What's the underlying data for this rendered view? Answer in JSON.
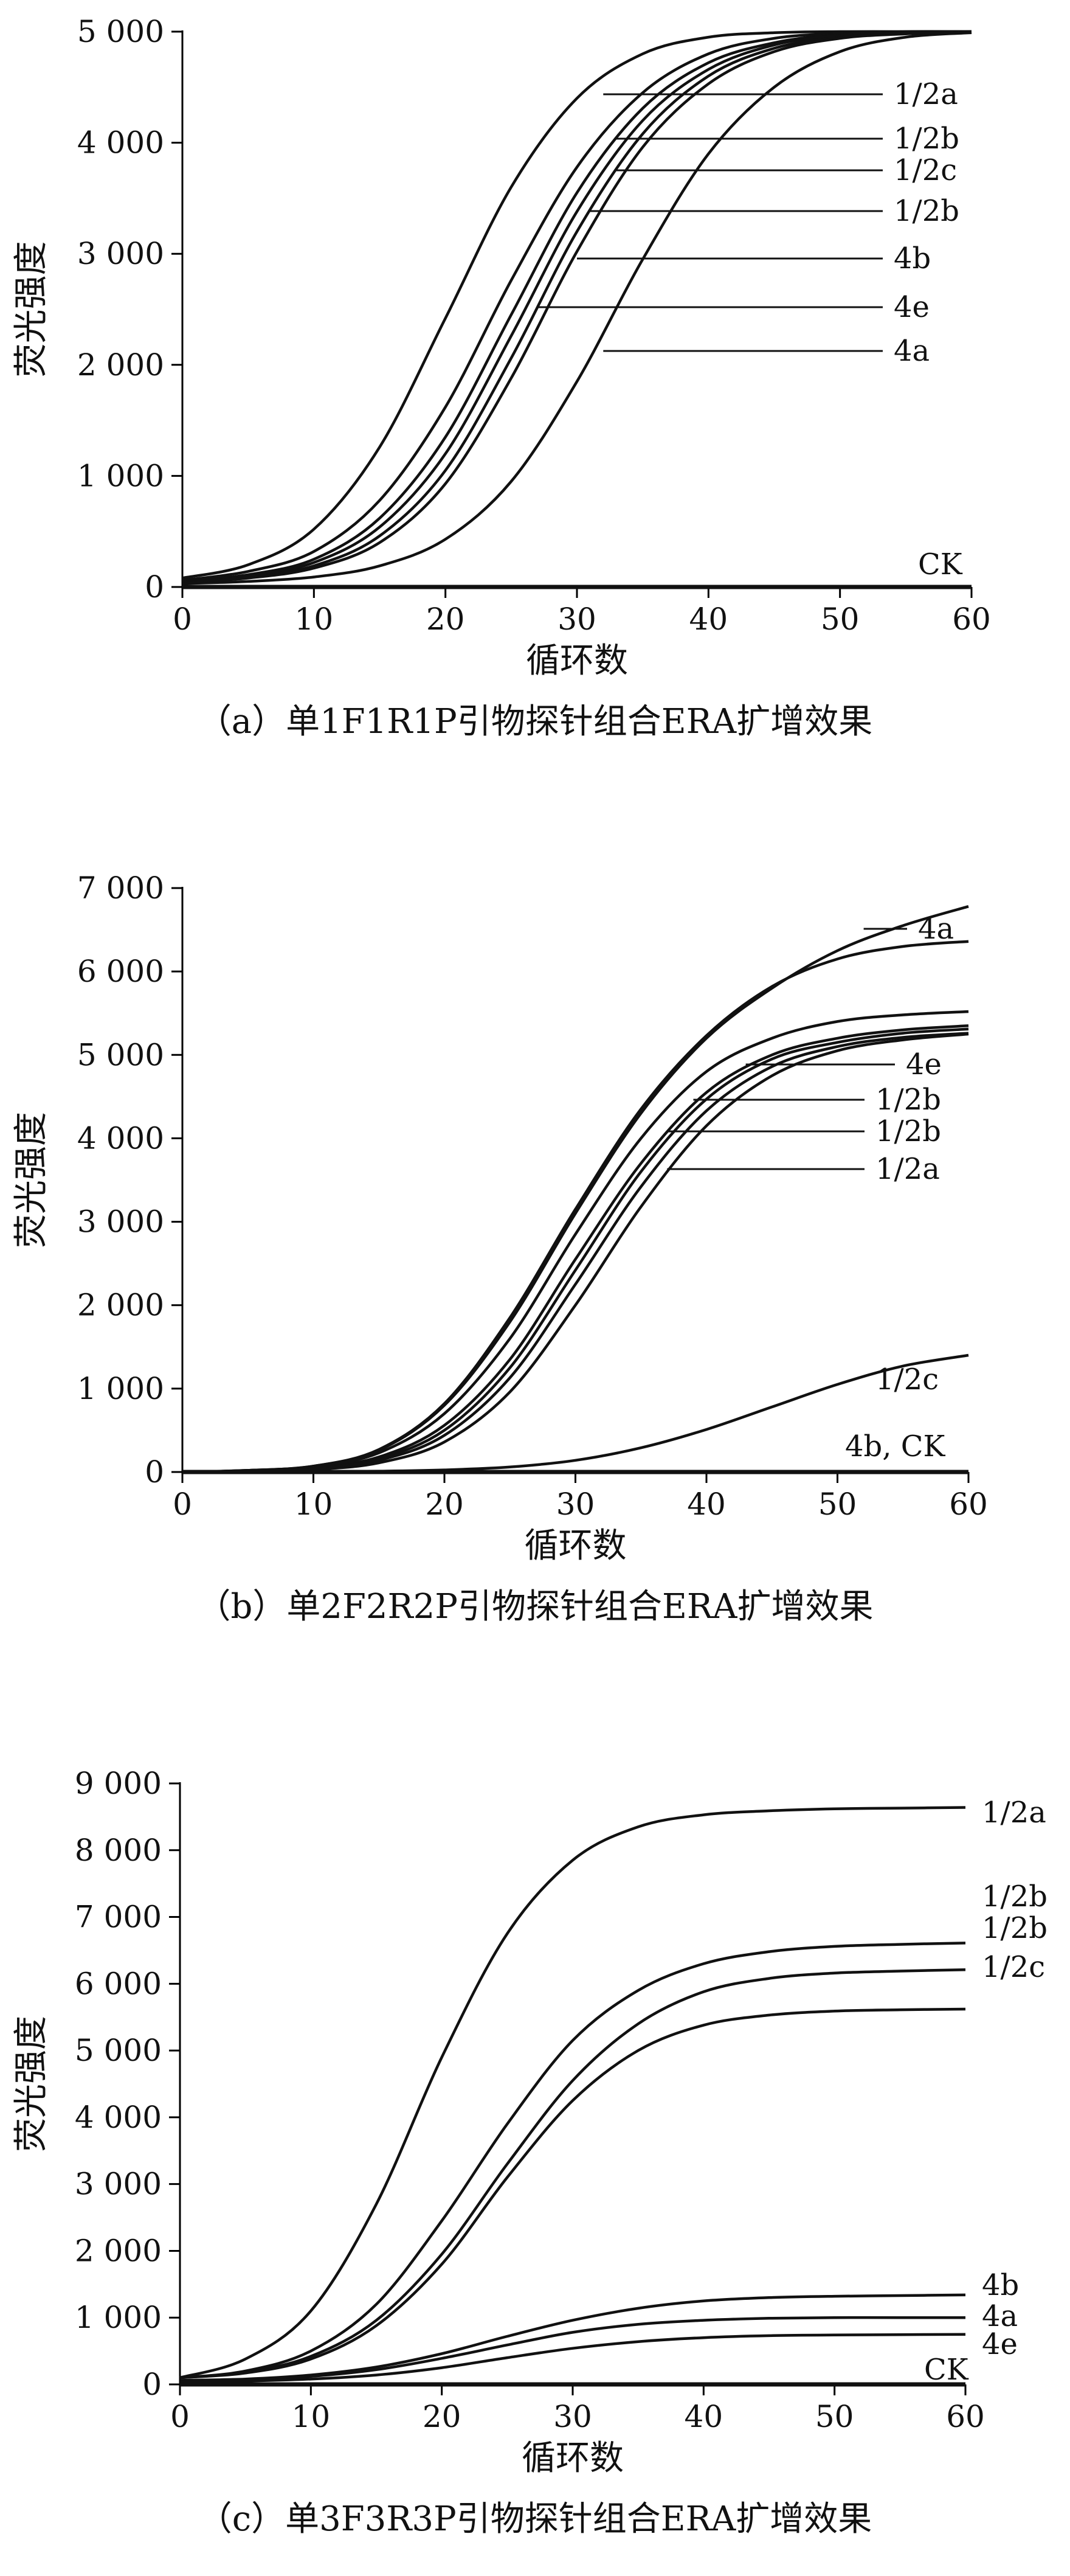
{
  "chart_data": [
    {
      "type": "line",
      "caption": "（a）单1F1R1P引物探针组合ERA扩增效果",
      "xlabel": "循环数",
      "ylabel": "荧光强度",
      "xlim": [
        0,
        60
      ],
      "ylim": [
        0,
        5000
      ],
      "xticks": [
        "0",
        "10",
        "20",
        "30",
        "40",
        "50",
        "60"
      ],
      "yticks": [
        "0",
        "1 000",
        "2 000",
        "3 000",
        "4 000",
        "5 000"
      ],
      "grid": false,
      "series": [
        {
          "name": "1/2a",
          "x": [
            0,
            5,
            10,
            15,
            20,
            25,
            30,
            35,
            40,
            45,
            50,
            55,
            60
          ],
          "y": [
            80,
            200,
            520,
            1260,
            2420,
            3600,
            4400,
            4800,
            4950,
            4990,
            5000,
            5000,
            5000
          ]
        },
        {
          "name": "1/2b",
          "x": [
            0,
            5,
            10,
            15,
            20,
            25,
            30,
            35,
            40,
            45,
            50,
            55,
            60
          ],
          "y": [
            60,
            140,
            320,
            780,
            1620,
            2760,
            3780,
            4450,
            4800,
            4940,
            4985,
            5000,
            5000
          ]
        },
        {
          "name": "1/2c",
          "x": [
            0,
            5,
            10,
            15,
            20,
            25,
            30,
            35,
            40,
            45,
            50,
            55,
            60
          ],
          "y": [
            50,
            110,
            250,
            620,
            1350,
            2450,
            3550,
            4310,
            4720,
            4900,
            4975,
            4995,
            5000
          ]
        },
        {
          "name": "1/2b",
          "x": [
            0,
            5,
            10,
            15,
            20,
            25,
            30,
            35,
            40,
            45,
            50,
            55,
            60
          ],
          "y": [
            50,
            100,
            220,
            540,
            1200,
            2260,
            3380,
            4200,
            4660,
            4880,
            4965,
            4990,
            5000
          ]
        },
        {
          "name": "4b",
          "x": [
            0,
            5,
            10,
            15,
            20,
            25,
            30,
            35,
            40,
            45,
            50,
            55,
            60
          ],
          "y": [
            40,
            90,
            190,
            460,
            1050,
            2060,
            3200,
            4080,
            4600,
            4850,
            4950,
            4985,
            5000
          ]
        },
        {
          "name": "4e",
          "x": [
            0,
            5,
            10,
            15,
            20,
            25,
            30,
            35,
            40,
            45,
            50,
            55,
            60
          ],
          "y": [
            40,
            80,
            170,
            400,
            930,
            1880,
            3020,
            3960,
            4530,
            4820,
            4940,
            4980,
            4995
          ]
        },
        {
          "name": "4a",
          "x": [
            0,
            5,
            10,
            15,
            20,
            25,
            30,
            35,
            40,
            45,
            50,
            55,
            60
          ],
          "y": [
            30,
            50,
            90,
            190,
            430,
            950,
            1850,
            2950,
            3900,
            4500,
            4820,
            4950,
            4990
          ]
        },
        {
          "name": "CK",
          "x": [
            0,
            60
          ],
          "y": [
            0,
            0
          ]
        }
      ]
    },
    {
      "type": "line",
      "caption": "（b）单2F2R2P引物探针组合ERA扩增效果",
      "xlabel": "循环数",
      "ylabel": "荧光强度",
      "xlim": [
        0,
        60
      ],
      "ylim": [
        0,
        7000
      ],
      "xticks": [
        "0",
        "10",
        "20",
        "30",
        "40",
        "50",
        "60"
      ],
      "yticks": [
        "0",
        "1 000",
        "2 000",
        "3 000",
        "4 000",
        "5 000",
        "6 000",
        "7 000"
      ],
      "grid": false,
      "series": [
        {
          "name": "4a",
          "x": [
            0,
            5,
            10,
            15,
            20,
            25,
            30,
            35,
            40,
            45,
            50,
            55,
            60
          ],
          "y": [
            0,
            20,
            70,
            260,
            800,
            1800,
            3100,
            4300,
            5200,
            5800,
            6250,
            6550,
            6780
          ]
        },
        {
          "name": "",
          "x": [
            0,
            5,
            10,
            15,
            20,
            25,
            30,
            35,
            40,
            45,
            50,
            55,
            60
          ],
          "y": [
            0,
            20,
            70,
            270,
            820,
            1850,
            3150,
            4350,
            5230,
            5820,
            6150,
            6300,
            6360
          ]
        },
        {
          "name": "",
          "x": [
            0,
            5,
            10,
            15,
            20,
            25,
            30,
            35,
            40,
            45,
            50,
            55,
            60
          ],
          "y": [
            0,
            20,
            60,
            230,
            700,
            1600,
            2850,
            4000,
            4800,
            5200,
            5400,
            5480,
            5520
          ]
        },
        {
          "name": "4e",
          "x": [
            0,
            5,
            10,
            15,
            20,
            25,
            30,
            35,
            40,
            45,
            50,
            55,
            60
          ],
          "y": [
            0,
            15,
            50,
            180,
            560,
            1350,
            2550,
            3700,
            4550,
            5000,
            5200,
            5300,
            5350
          ]
        },
        {
          "name": "1/2b",
          "x": [
            0,
            5,
            10,
            15,
            20,
            25,
            30,
            35,
            40,
            45,
            50,
            55,
            60
          ],
          "y": [
            0,
            15,
            45,
            160,
            500,
            1250,
            2420,
            3600,
            4470,
            4950,
            5150,
            5260,
            5310
          ]
        },
        {
          "name": "1/2b",
          "x": [
            0,
            5,
            10,
            15,
            20,
            25,
            30,
            35,
            40,
            45,
            50,
            55,
            60
          ],
          "y": [
            0,
            12,
            40,
            140,
            440,
            1130,
            2250,
            3420,
            4330,
            4860,
            5100,
            5210,
            5260
          ]
        },
        {
          "name": "1/2a",
          "x": [
            0,
            5,
            10,
            15,
            20,
            25,
            30,
            35,
            40,
            45,
            50,
            55,
            60
          ],
          "y": [
            0,
            10,
            30,
            110,
            360,
            960,
            2000,
            3180,
            4150,
            4750,
            5050,
            5180,
            5250
          ]
        },
        {
          "name": "1/2c",
          "x": [
            0,
            5,
            10,
            15,
            20,
            25,
            30,
            35,
            40,
            45,
            50,
            55,
            60
          ],
          "y": [
            0,
            0,
            5,
            10,
            25,
            60,
            140,
            290,
            510,
            780,
            1050,
            1270,
            1400
          ]
        },
        {
          "name": "4b, CK",
          "x": [
            0,
            60
          ],
          "y": [
            0,
            0
          ]
        }
      ]
    },
    {
      "type": "line",
      "caption": "（c）单3F3R3P引物探针组合ERA扩增效果",
      "xlabel": "循环数",
      "ylabel": "荧光强度",
      "xlim": [
        0,
        60
      ],
      "ylim": [
        0,
        9000
      ],
      "xticks": [
        "0",
        "10",
        "20",
        "30",
        "40",
        "50",
        "60"
      ],
      "yticks": [
        "0",
        "1 000",
        "2 000",
        "3 000",
        "4 000",
        "5 000",
        "6 000",
        "7 000",
        "8 000",
        "9 000"
      ],
      "grid": false,
      "series": [
        {
          "name": "1/2a",
          "x": [
            0,
            5,
            10,
            15,
            20,
            25,
            30,
            35,
            40,
            45,
            50,
            55,
            60
          ],
          "y": [
            100,
            380,
            1100,
            2700,
            4900,
            6750,
            7850,
            8350,
            8530,
            8590,
            8620,
            8630,
            8640
          ]
        },
        {
          "name": "1/2b",
          "x": [
            0,
            5,
            10,
            15,
            20,
            25,
            30,
            35,
            40,
            45,
            50,
            55,
            60
          ],
          "y": [
            100,
            200,
            500,
            1200,
            2450,
            3900,
            5150,
            5900,
            6300,
            6480,
            6560,
            6590,
            6610
          ]
        },
        {
          "name": "1/2b",
          "x": [
            0,
            5,
            10,
            15,
            20,
            25,
            30,
            35,
            40,
            45,
            50,
            55,
            60
          ],
          "y": [
            100,
            180,
            420,
            960,
            1950,
            3300,
            4550,
            5400,
            5880,
            6080,
            6160,
            6190,
            6210
          ]
        },
        {
          "name": "1/2c",
          "x": [
            0,
            5,
            10,
            15,
            20,
            25,
            30,
            35,
            40,
            45,
            50,
            55,
            60
          ],
          "y": [
            100,
            170,
            380,
            880,
            1800,
            3100,
            4250,
            5000,
            5380,
            5530,
            5590,
            5610,
            5620
          ]
        },
        {
          "name": "4b",
          "x": [
            0,
            5,
            10,
            15,
            20,
            25,
            30,
            35,
            40,
            45,
            50,
            55,
            60
          ],
          "y": [
            60,
            80,
            140,
            260,
            460,
            720,
            960,
            1140,
            1250,
            1300,
            1320,
            1330,
            1340
          ]
        },
        {
          "name": "4a",
          "x": [
            0,
            5,
            10,
            15,
            20,
            25,
            30,
            35,
            40,
            45,
            50,
            55,
            60
          ],
          "y": [
            50,
            70,
            120,
            220,
            390,
            590,
            780,
            900,
            960,
            990,
            1000,
            1000,
            1000
          ]
        },
        {
          "name": "4e",
          "x": [
            0,
            5,
            10,
            15,
            20,
            25,
            30,
            35,
            40,
            45,
            50,
            55,
            60
          ],
          "y": [
            40,
            50,
            80,
            140,
            250,
            400,
            540,
            640,
            700,
            730,
            740,
            745,
            750
          ]
        },
        {
          "name": "CK",
          "x": [
            0,
            60
          ],
          "y": [
            0,
            0
          ]
        }
      ]
    }
  ]
}
